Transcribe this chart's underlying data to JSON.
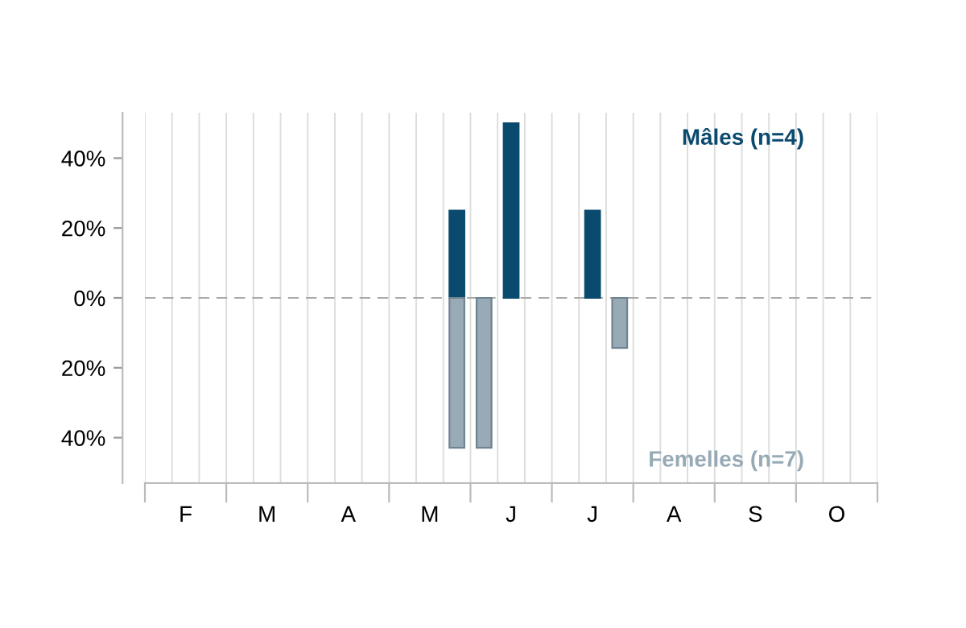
{
  "chart_data": {
    "type": "bar",
    "categories": [
      null,
      "F",
      null,
      null,
      "M",
      null,
      null,
      "A",
      null,
      null,
      "M",
      null,
      null,
      "J",
      null,
      null,
      "J",
      null,
      null,
      "A",
      null,
      null,
      "S",
      null,
      null,
      "O",
      null
    ],
    "series": [
      {
        "name": "Mâles (n=4)",
        "color": "#0b4a6f",
        "values": [
          null,
          null,
          null,
          null,
          null,
          null,
          null,
          null,
          null,
          null,
          null,
          25,
          null,
          50,
          null,
          null,
          25,
          null,
          null,
          null,
          null,
          null,
          null,
          null,
          null,
          null,
          null
        ]
      },
      {
        "name": "Femelles (n=7)",
        "color": "#97aab6",
        "values": [
          null,
          null,
          null,
          null,
          null,
          null,
          null,
          null,
          null,
          null,
          null,
          -42.9,
          -42.9,
          null,
          null,
          null,
          null,
          -14.3,
          null,
          null,
          null,
          null,
          null,
          null,
          null,
          null,
          null
        ]
      }
    ],
    "ylim": [
      -53,
      53
    ],
    "yticks": [
      {
        "value": -40,
        "label": "40%"
      },
      {
        "value": -20,
        "label": "20%"
      },
      {
        "value": 0,
        "label": "0%"
      },
      {
        "value": 20,
        "label": "20%"
      },
      {
        "value": 40,
        "label": "40%"
      }
    ],
    "ref_lines": [
      {
        "axis": "y",
        "value": 0,
        "color": "#aaaaaa",
        "line_style": "dashed"
      }
    ],
    "grid": "x",
    "legend": false
  }
}
